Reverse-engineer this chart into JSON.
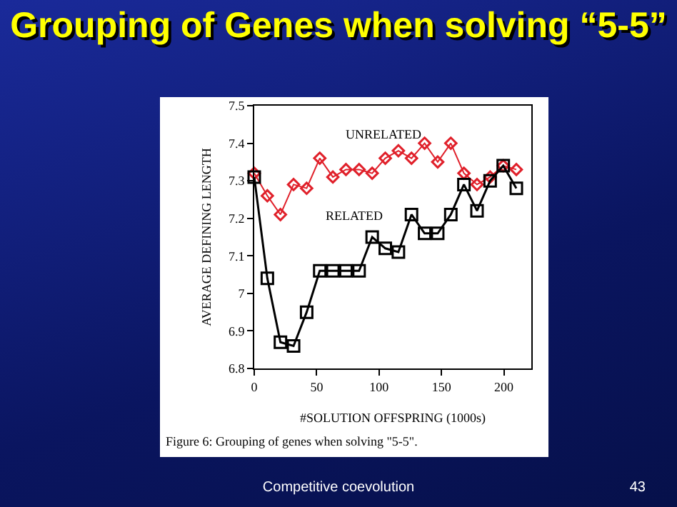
{
  "chart_data": {
    "type": "line",
    "title": "Grouping of Genes when solving “5-5”",
    "xlabel": "#SOLUTION OFFSPRING (1000s)",
    "ylabel": "AVERAGE DEFINING LENGTH",
    "x": [
      0,
      10.5,
      21,
      31.5,
      42,
      52.5,
      63,
      73.5,
      84,
      94.5,
      105,
      115.5,
      126,
      136.5,
      147,
      157.5,
      168,
      178.5,
      189,
      199.5,
      210
    ],
    "series": [
      {
        "name": "UNRELATED",
        "color": "#e0202a",
        "marker": "diamond",
        "values": [
          7.32,
          7.26,
          7.21,
          7.29,
          7.28,
          7.36,
          7.31,
          7.33,
          7.33,
          7.32,
          7.36,
          7.38,
          7.36,
          7.4,
          7.35,
          7.4,
          7.32,
          7.29,
          7.31,
          7.34,
          7.33
        ]
      },
      {
        "name": "RELATED",
        "color": "#000000",
        "marker": "square",
        "values": [
          7.31,
          7.04,
          6.87,
          6.86,
          6.95,
          7.06,
          7.06,
          7.06,
          7.06,
          7.15,
          7.12,
          7.11,
          7.21,
          7.16,
          7.16,
          7.21,
          7.29,
          7.22,
          7.3,
          7.34,
          7.28
        ]
      }
    ],
    "xlim": [
      0,
      222
    ],
    "xticks": [
      0,
      50,
      100,
      150,
      200
    ],
    "ylim": [
      6.8,
      7.5
    ],
    "yticks": [
      6.8,
      6.9,
      7,
      7.1,
      7.2,
      7.3,
      7.4,
      7.5
    ],
    "grid": false,
    "legend": false,
    "line_style": "solid",
    "annotations": [
      "Figure 6: Grouping of genes when solving \"5-5\".",
      "Competitive coevolution",
      "43"
    ]
  }
}
